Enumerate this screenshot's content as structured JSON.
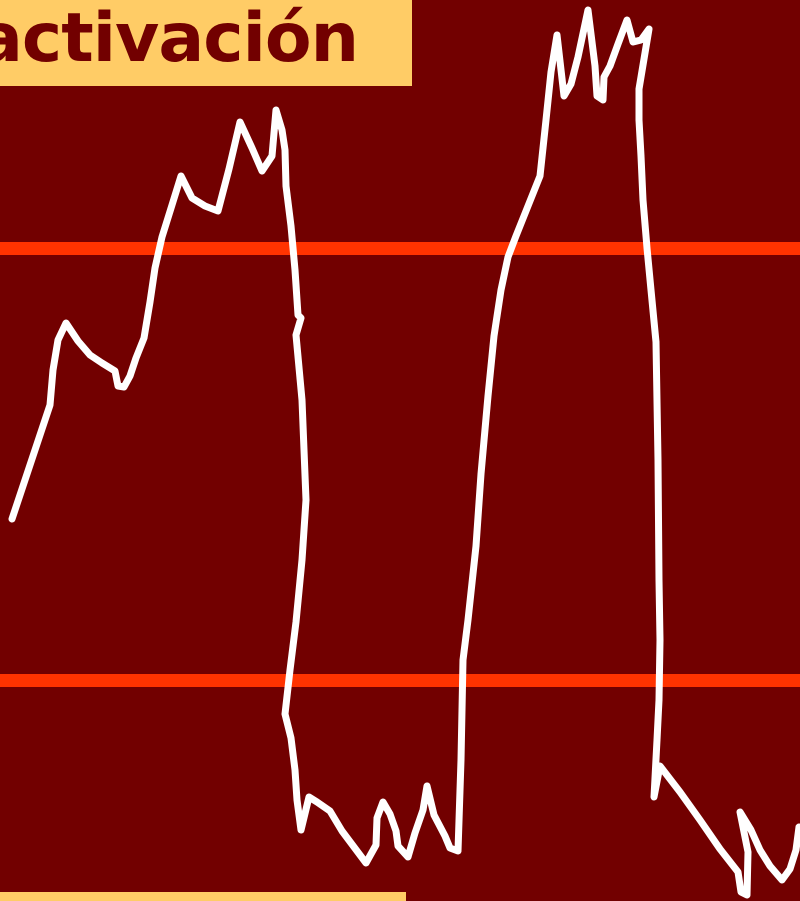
{
  "slide": {
    "title": "activación",
    "colors": {
      "background": "#720000",
      "title_box": "#FFCC66",
      "title_text": "#720000",
      "threshold_lines": "#FF3300",
      "trace": "#FFFFFF"
    }
  },
  "diagram": {
    "description_elements": [
      "white-signal-trace",
      "upper-threshold-line",
      "lower-threshold-line"
    ]
  }
}
